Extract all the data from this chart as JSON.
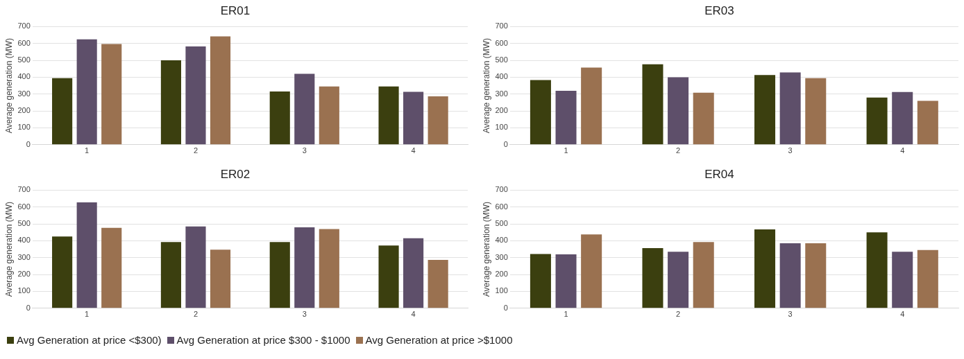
{
  "chart_data": [
    {
      "type": "bar",
      "title": "ER01",
      "ylabel": "Average generation (MW)",
      "categories": [
        "1",
        "2",
        "3",
        "4"
      ],
      "ylim": [
        0,
        700
      ],
      "yticks": [
        0,
        100,
        200,
        300,
        400,
        500,
        600,
        700
      ],
      "grid": "y",
      "legend": "bottom",
      "series": [
        {
          "name": "Avg Generation at price <$300)",
          "color": "#3b3f0f",
          "values": [
            395,
            500,
            315,
            345
          ]
        },
        {
          "name": "Avg Generation at price $300 - $1000",
          "color": "#5e4f6a",
          "values": [
            625,
            583,
            420,
            313
          ]
        },
        {
          "name": "Avg Generation at price >$1000",
          "color": "#9a7150",
          "values": [
            597,
            642,
            345,
            287
          ]
        }
      ]
    },
    {
      "type": "bar",
      "title": "ER03",
      "ylabel": "Average generation (MW)",
      "categories": [
        "1",
        "2",
        "3",
        "4"
      ],
      "ylim": [
        0,
        700
      ],
      "yticks": [
        0,
        100,
        200,
        300,
        400,
        500,
        600,
        700
      ],
      "grid": "y",
      "series": [
        {
          "color": "#3b3f0f",
          "values": [
            383,
            477,
            413,
            280
          ]
        },
        {
          "color": "#5e4f6a",
          "values": [
            320,
            400,
            428,
            312
          ]
        },
        {
          "color": "#9a7150",
          "values": [
            457,
            308,
            395,
            260
          ]
        }
      ]
    },
    {
      "type": "bar",
      "title": "ER02",
      "ylabel": "Average generation (MW)",
      "categories": [
        "1",
        "2",
        "3",
        "4"
      ],
      "ylim": [
        0,
        700
      ],
      "yticks": [
        0,
        100,
        200,
        300,
        400,
        500,
        600,
        700
      ],
      "grid": "y",
      "series": [
        {
          "color": "#3b3f0f",
          "values": [
            425,
            393,
            393,
            372
          ]
        },
        {
          "color": "#5e4f6a",
          "values": [
            628,
            485,
            480,
            415
          ]
        },
        {
          "color": "#9a7150",
          "values": [
            477,
            347,
            470,
            287
          ]
        }
      ]
    },
    {
      "type": "bar",
      "title": "ER04",
      "ylabel": "Average generation (MW)",
      "categories": [
        "1",
        "2",
        "3",
        "4"
      ],
      "ylim": [
        0,
        700
      ],
      "yticks": [
        0,
        100,
        200,
        300,
        400,
        500,
        600,
        700
      ],
      "grid": "y",
      "series": [
        {
          "color": "#3b3f0f",
          "values": [
            322,
            357,
            467,
            450
          ]
        },
        {
          "color": "#5e4f6a",
          "values": [
            320,
            335,
            385,
            335
          ]
        },
        {
          "color": "#9a7150",
          "values": [
            438,
            393,
            385,
            345
          ]
        }
      ]
    }
  ]
}
